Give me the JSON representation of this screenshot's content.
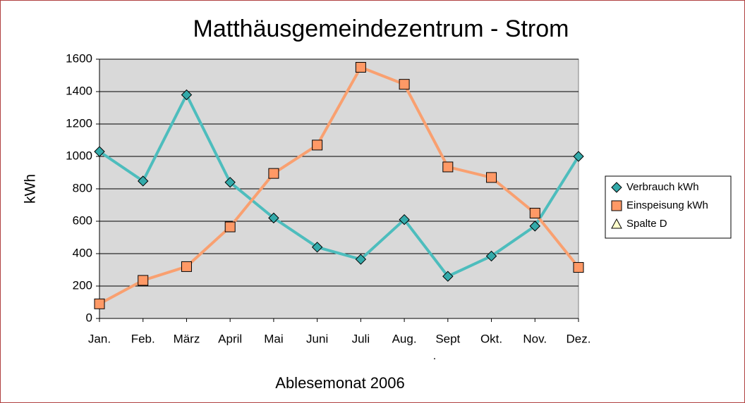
{
  "chart_data": {
    "type": "line",
    "title": "Matthäusgemeindezentrum - Strom",
    "x_label": "Ablesemonat 2006",
    "y_label": "kWh",
    "annotation": ".",
    "categories": [
      "Jan.",
      "Feb.",
      "März",
      "April",
      "Mai",
      "Juni",
      "Juli",
      "Aug.",
      "Sept",
      "Okt.",
      "Nov.",
      "Dez."
    ],
    "series": [
      {
        "name": "Verbrauch kWh",
        "color": "#4dbdbd",
        "marker": "diamond",
        "marker_color": "#33aaaa",
        "values": [
          1030,
          848,
          1380,
          840,
          620,
          440,
          365,
          610,
          260,
          385,
          570,
          1000
        ]
      },
      {
        "name": "Einspeisung kWh",
        "color": "#f9a070",
        "marker": "square",
        "marker_color": "#ff9966",
        "values": [
          90,
          235,
          320,
          565,
          895,
          1070,
          1550,
          1445,
          935,
          870,
          650,
          315
        ]
      },
      {
        "name": "Spalte D",
        "color": "#ffffcc",
        "marker": "triangle",
        "marker_color": "#ffffcc",
        "values": [
          null,
          null,
          null,
          null,
          null,
          null,
          null,
          null,
          null,
          null,
          null,
          null
        ]
      }
    ],
    "ylim": [
      0,
      1600
    ],
    "yticks": [
      0,
      200,
      400,
      600,
      800,
      1000,
      1200,
      1400,
      1600
    ],
    "grid": true,
    "legend": "right",
    "plot_background": "#d9d9d9"
  }
}
